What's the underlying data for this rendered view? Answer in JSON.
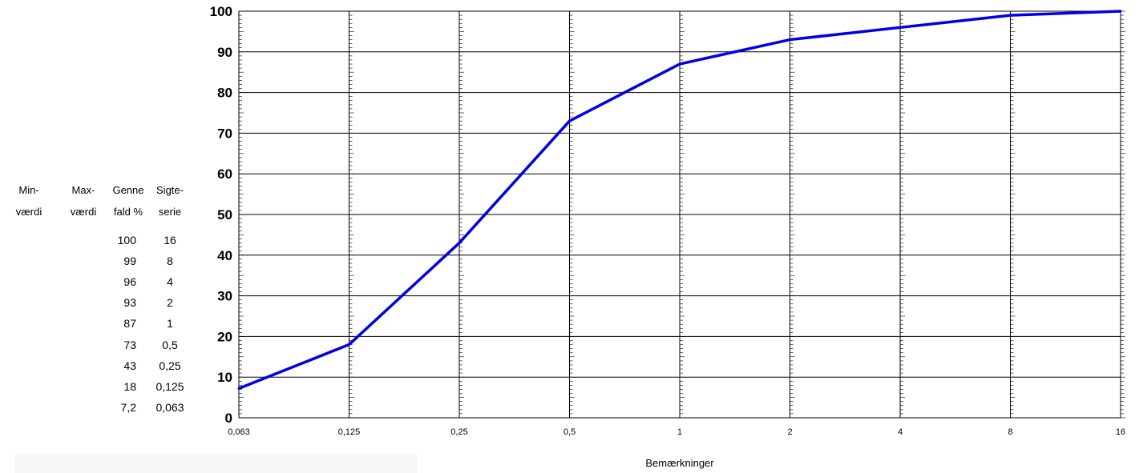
{
  "table": {
    "headers": [
      {
        "line1": "Min-",
        "line2": "værdi"
      },
      {
        "line1": "Max-",
        "line2": "værdi"
      },
      {
        "line1": "Genne",
        "line2": "fald %"
      },
      {
        "line1": "Sigte-",
        "line2": "serie"
      }
    ],
    "rows": [
      {
        "min": "",
        "max": "",
        "pct": "100",
        "sieve": "16"
      },
      {
        "min": "",
        "max": "",
        "pct": "99",
        "sieve": "8"
      },
      {
        "min": "",
        "max": "",
        "pct": "96",
        "sieve": "4"
      },
      {
        "min": "",
        "max": "",
        "pct": "93",
        "sieve": "2"
      },
      {
        "min": "",
        "max": "",
        "pct": "87",
        "sieve": "1"
      },
      {
        "min": "",
        "max": "",
        "pct": "73",
        "sieve": "0,5"
      },
      {
        "min": "",
        "max": "",
        "pct": "43",
        "sieve": "0,25"
      },
      {
        "min": "",
        "max": "",
        "pct": "18",
        "sieve": "0,125"
      },
      {
        "min": "",
        "max": "",
        "pct": "7,2",
        "sieve": "0,063"
      }
    ]
  },
  "chart_data": {
    "type": "line",
    "title": "",
    "xlabel": "Bemærkninger",
    "ylabel": "",
    "x_scale": "log2",
    "categories": [
      "0,063",
      "0,125",
      "0,25",
      "0,5",
      "1",
      "2",
      "4",
      "8",
      "16"
    ],
    "x": [
      0.063,
      0.125,
      0.25,
      0.5,
      1,
      2,
      4,
      8,
      16
    ],
    "ylim": [
      0,
      100
    ],
    "yticks": [
      "0",
      "10",
      "20",
      "30",
      "40",
      "50",
      "60",
      "70",
      "80",
      "90",
      "100"
    ],
    "grid": true,
    "legend": "none",
    "series": [
      {
        "name": "",
        "color": "#0000e6",
        "values": [
          7.2,
          18,
          43,
          73,
          87,
          93,
          96,
          99,
          100
        ]
      }
    ]
  }
}
